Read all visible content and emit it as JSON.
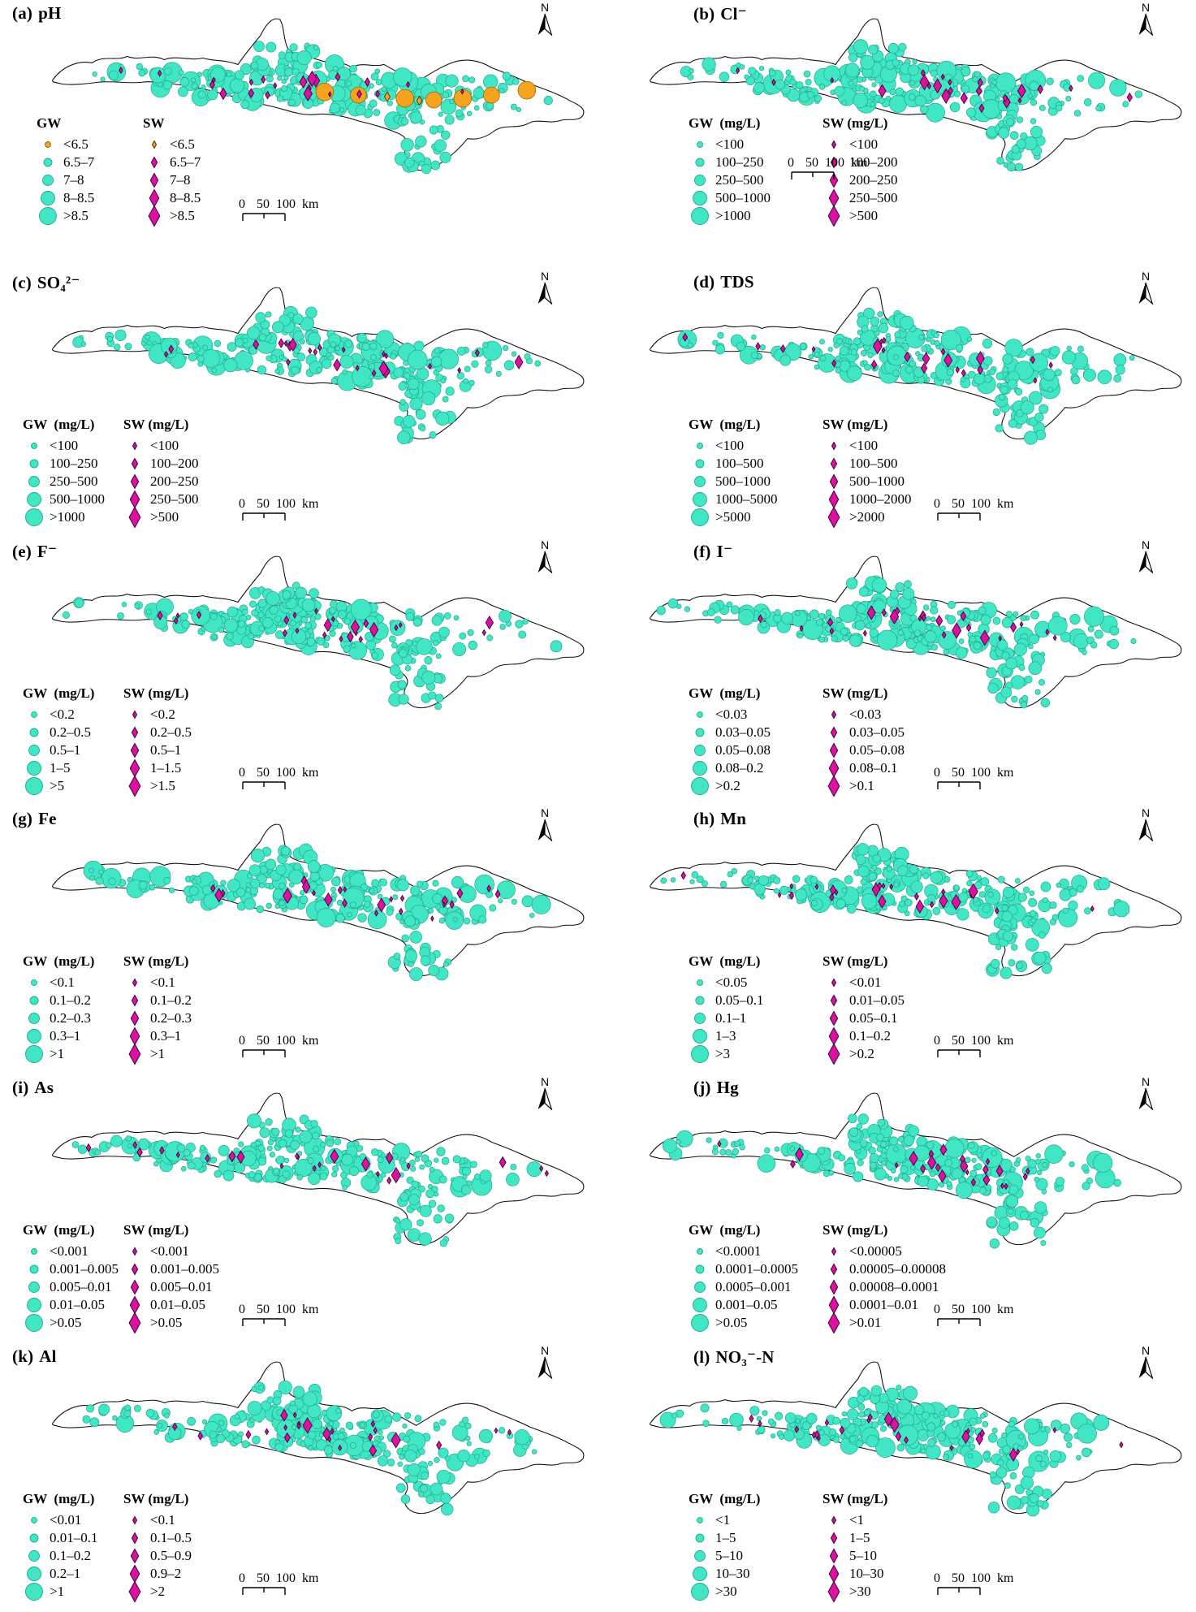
{
  "figure": {
    "north_label": "N",
    "scale_bar": {
      "labels": [
        "0",
        "50",
        "100"
      ],
      "unit": "km"
    },
    "colors": {
      "gw_fill": "#41e7c5",
      "gw_stroke": "#20a98c",
      "sw_fill": "#dd10a0",
      "sw_stroke": "#38013a",
      "acid_fill": "#f6a41d",
      "acid_stroke": "#8f5e00",
      "map_outline": "#111111"
    },
    "panels": [
      {
        "index_label": "(a)",
        "title": "pH",
        "gw_header": "GW",
        "sw_header": "SW",
        "gw_classes": [
          "<6.5",
          "6.5–7",
          "7–8",
          "8–8.5",
          ">8.5"
        ],
        "sw_classes": [
          "<6.5",
          "6.5–7",
          "7–8",
          "8–8.5",
          ">8.5"
        ]
      },
      {
        "index_label": "(b)",
        "title": "Cl⁻",
        "gw_header": "GW  (mg/L)",
        "sw_header": "SW (mg/L)",
        "gw_classes": [
          "<100",
          "100–250",
          "250–500",
          "500–1000",
          ">1000"
        ],
        "sw_classes": [
          "<100",
          "100–200",
          "200–250",
          "250–500",
          ">500"
        ]
      },
      {
        "index_label": "(c)",
        "title": "SO₄²⁻",
        "gw_header": "GW  (mg/L)",
        "sw_header": "SW (mg/L)",
        "gw_classes": [
          "<100",
          "100–250",
          "250–500",
          "500–1000",
          ">1000"
        ],
        "sw_classes": [
          "<100",
          "100–200",
          "200–250",
          "250–500",
          ">500"
        ]
      },
      {
        "index_label": "(d)",
        "title": "TDS",
        "gw_header": "GW  (mg/L)",
        "sw_header": "SW (mg/L)",
        "gw_classes": [
          "<100",
          "100–500",
          "500–1000",
          "1000–5000",
          ">5000"
        ],
        "sw_classes": [
          "<100",
          "100–500",
          "500–1000",
          "1000–2000",
          ">2000"
        ]
      },
      {
        "index_label": "(e)",
        "title": "F⁻",
        "gw_header": "GW  (mg/L)",
        "sw_header": "SW (mg/L)",
        "gw_classes": [
          "<0.2",
          "0.2–0.5",
          "0.5–1",
          "1–5",
          ">5"
        ],
        "sw_classes": [
          "<0.2",
          "0.2–0.5",
          "0.5–1",
          "1–1.5",
          ">1.5"
        ]
      },
      {
        "index_label": "(f)",
        "title": "I⁻",
        "gw_header": "GW  (mg/L)",
        "sw_header": "SW (mg/L)",
        "gw_classes": [
          "<0.03",
          "0.03–0.05",
          "0.05–0.08",
          "0.08–0.2",
          ">0.2"
        ],
        "sw_classes": [
          "<0.03",
          "0.03–0.05",
          "0.05–0.08",
          "0.08–0.1",
          ">0.1"
        ]
      },
      {
        "index_label": "(g)",
        "title": "Fe",
        "gw_header": "GW  (mg/L)",
        "sw_header": "SW (mg/L)",
        "gw_classes": [
          "<0.1",
          "0.1–0.2",
          "0.2–0.3",
          "0.3–1",
          ">1"
        ],
        "sw_classes": [
          "<0.1",
          "0.1–0.2",
          "0.2–0.3",
          "0.3–1",
          ">1"
        ]
      },
      {
        "index_label": "(h)",
        "title": "Mn",
        "gw_header": "GW  (mg/L)",
        "sw_header": "SW (mg/L)",
        "gw_classes": [
          "<0.05",
          "0.05–0.1",
          "0.1–1",
          "1–3",
          ">3"
        ],
        "sw_classes": [
          "<0.01",
          "0.01–0.05",
          "0.05–0.1",
          "0.1–0.2",
          ">0.2"
        ]
      },
      {
        "index_label": "(i)",
        "title": "As",
        "gw_header": "GW  (mg/L)",
        "sw_header": "SW (mg/L)",
        "gw_classes": [
          "<0.001",
          "0.001–0.005",
          "0.005–0.01",
          "0.01–0.05",
          ">0.05"
        ],
        "sw_classes": [
          "<0.001",
          "0.001–0.005",
          "0.005–0.01",
          "0.01–0.05",
          ">0.05"
        ]
      },
      {
        "index_label": "(j)",
        "title": "Hg",
        "gw_header": "GW  (mg/L)",
        "sw_header": "SW (mg/L)",
        "gw_classes": [
          "<0.0001",
          "0.0001–0.0005",
          "0.0005–0.001",
          "0.001–0.05",
          ">0.05"
        ],
        "sw_classes": [
          "<0.00005",
          "0.00005–0.00008",
          "0.00008–0.0001",
          "0.0001–0.01",
          ">0.01"
        ]
      },
      {
        "index_label": "(k)",
        "title": "Al",
        "gw_header": "GW  (mg/L)",
        "sw_header": "SW (mg/L)",
        "gw_classes": [
          "<0.01",
          "0.01–0.1",
          "0.1–0.2",
          "0.2–1",
          ">1"
        ],
        "sw_classes": [
          "<0.1",
          "0.1–0.5",
          "0.5–0.9",
          "0.9–2",
          ">2"
        ]
      },
      {
        "index_label": "(l)",
        "title": "NO₃⁻-N",
        "gw_header": "GW  (mg/L)",
        "sw_header": "SW (mg/L)",
        "gw_classes": [
          "<1",
          "1–5",
          "5–10",
          "10–30",
          ">30"
        ],
        "sw_classes": [
          "<1",
          "1–5",
          "5–10",
          "10–30",
          ">30"
        ]
      }
    ]
  }
}
